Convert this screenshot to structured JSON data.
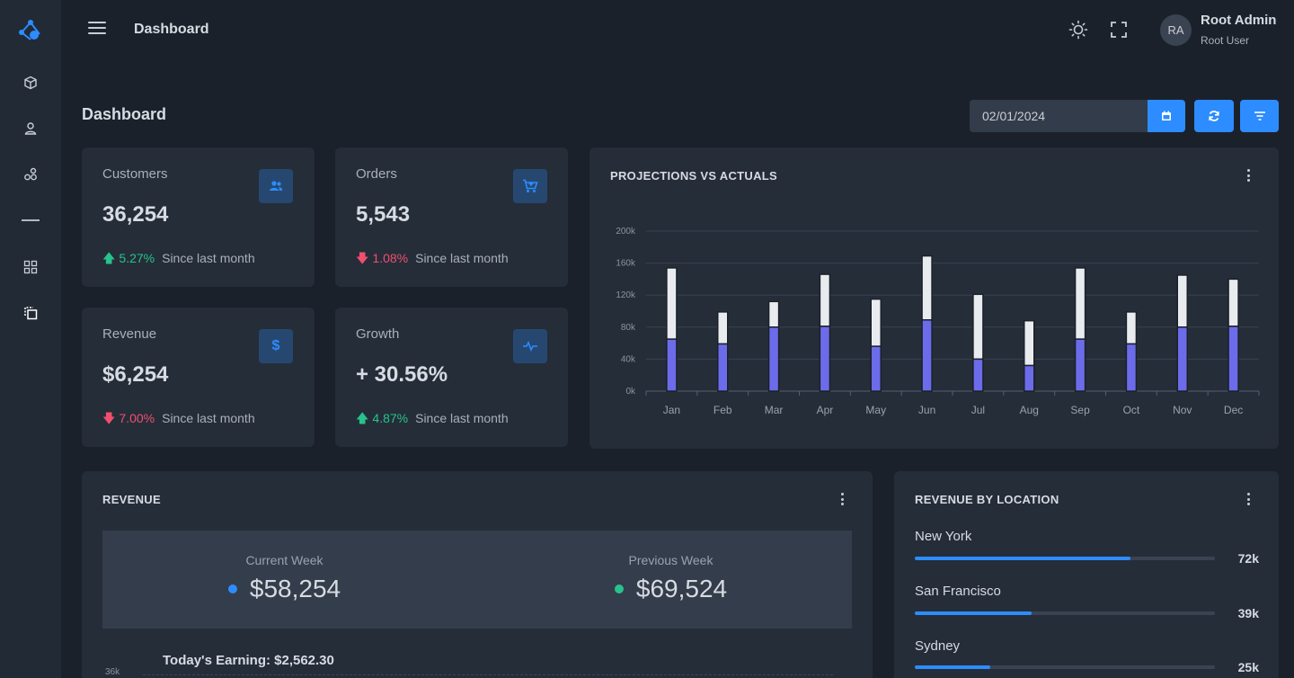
{
  "topbar": {
    "title": "Dashboard"
  },
  "user": {
    "initials": "RA",
    "name": "Root Admin",
    "role": "Root User"
  },
  "page": {
    "title": "Dashboard"
  },
  "date_filter": {
    "value": "02/01/2024"
  },
  "icons": {
    "logo": "network-logo-icon",
    "sidebar": [
      "cube-icon",
      "user-icon",
      "circles-icon",
      "minus-icon",
      "grid-icon",
      "copy-icon"
    ],
    "theme": "sun-icon",
    "fullscreen": "expand-icon",
    "calendar": "calendar-icon",
    "refresh": "refresh-icon",
    "filter": "filter-icon"
  },
  "colors": {
    "accent": "#2d8cff",
    "up": "#27c38a",
    "down": "#f0506e",
    "actual": "#6c6cea",
    "projection": "#e9ecef"
  },
  "stats": [
    {
      "label": "Customers",
      "value": "36,254",
      "trend": "up",
      "change": "5.27%",
      "since": "Since last month",
      "icon": "users-icon"
    },
    {
      "label": "Orders",
      "value": "5,543",
      "trend": "down",
      "change": "1.08%",
      "since": "Since last month",
      "icon": "cart-icon"
    },
    {
      "label": "Revenue",
      "value": "$6,254",
      "trend": "down",
      "change": "7.00%",
      "since": "Since last month",
      "icon": "dollar-icon"
    },
    {
      "label": "Growth",
      "value": "+ 30.56%",
      "trend": "up",
      "change": "4.87%",
      "since": "Since last month",
      "icon": "pulse-icon"
    }
  ],
  "projections": {
    "title": "PROJECTIONS VS ACTUALS"
  },
  "chart_data": {
    "type": "bar",
    "stacked": true,
    "categories": [
      "Jan",
      "Feb",
      "Mar",
      "Apr",
      "May",
      "Jun",
      "Jul",
      "Aug",
      "Sep",
      "Oct",
      "Nov",
      "Dec"
    ],
    "series": [
      {
        "values": [
          65,
          59,
          80,
          81,
          56,
          89,
          40,
          32,
          65,
          59,
          80,
          81
        ]
      },
      {
        "values": [
          89,
          40,
          32,
          65,
          59,
          80,
          81,
          56,
          89,
          40,
          65,
          59
        ]
      }
    ],
    "yticks": [
      "0k",
      "40k",
      "80k",
      "120k",
      "160k",
      "200k"
    ],
    "ylim": [
      0,
      200
    ],
    "grid": true
  },
  "revenue": {
    "title": "REVENUE",
    "current_label": "Current Week",
    "current_value": "$58,254",
    "previous_label": "Previous Week",
    "previous_value": "$69,524",
    "today": "Today's Earning: $2,562.30",
    "tick_top": "36k"
  },
  "location": {
    "title": "REVENUE BY LOCATION",
    "items": [
      {
        "name": "New York",
        "value": "72k",
        "fraction": 0.72
      },
      {
        "name": "San Francisco",
        "value": "39k",
        "fraction": 0.39
      },
      {
        "name": "Sydney",
        "value": "25k",
        "fraction": 0.25
      }
    ]
  }
}
